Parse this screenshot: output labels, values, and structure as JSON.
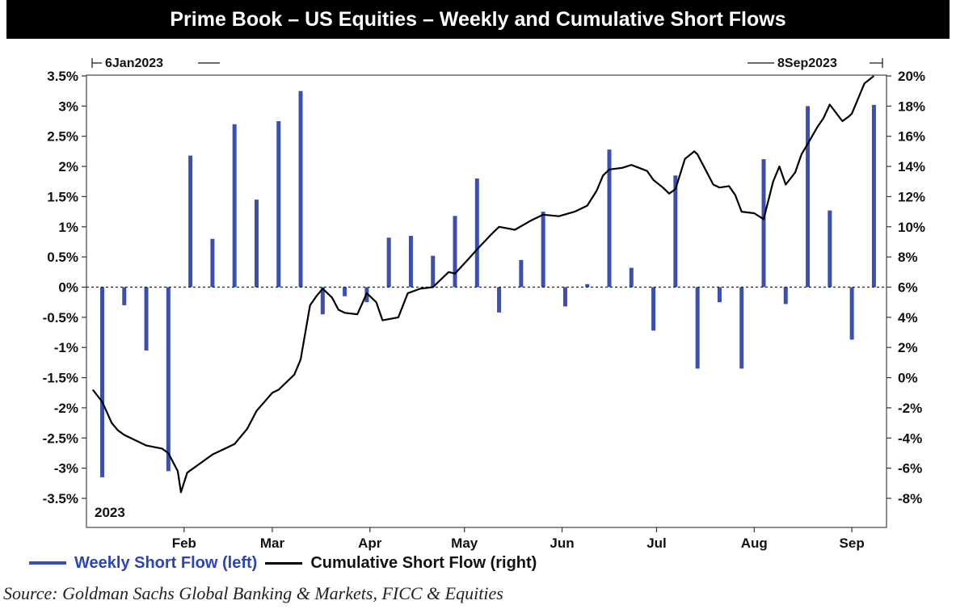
{
  "title": "Prime Book – US Equities – Weekly and Cumulative Short Flows",
  "source": "Source: Goldman Sachs Global Banking & Markets, FICC & Equities",
  "colors": {
    "bar": "#3a4fb0",
    "line": "#000000",
    "legend_bar_text": "#2b45b5"
  },
  "chart_data": {
    "type": "bar+line",
    "year_label": "2023",
    "start_label": "6Jan2023",
    "end_label": "8Sep2023",
    "x_labels": [
      "Feb",
      "Mar",
      "Apr",
      "May",
      "Jun",
      "Jul",
      "Aug",
      "Sep"
    ],
    "left_axis": {
      "ylim": [
        -3.5,
        3.5
      ],
      "ticks": [
        3.5,
        3,
        2.5,
        2,
        1.5,
        1,
        0.5,
        0,
        -0.5,
        -1,
        -1.5,
        -2,
        -2.5,
        -3,
        -3.5
      ],
      "tick_labels": [
        "3.5%",
        "3%",
        "2.5%",
        "2%",
        "1.5%",
        "1%",
        "0.5%",
        "0%",
        "-0.5%",
        "-1%",
        "-1.5%",
        "-2%",
        "-2.5%",
        "-3%",
        "-3.5%"
      ]
    },
    "right_axis": {
      "ylim": [
        -8,
        20
      ],
      "ticks": [
        20,
        18,
        16,
        14,
        12,
        10,
        8,
        6,
        4,
        2,
        0,
        -2,
        -4,
        -6,
        -8
      ],
      "tick_labels": [
        "20%",
        "18%",
        "16%",
        "14%",
        "12%",
        "10%",
        "8%",
        "6%",
        "4%",
        "2%",
        "0%",
        "-2%",
        "-4%",
        "-6%",
        "-8%"
      ]
    },
    "legend": [
      {
        "name": "Weekly Short Flow (left)",
        "kind": "bar"
      },
      {
        "name": "Cumulative Short Flow (right)",
        "kind": "line"
      }
    ],
    "series": [
      {
        "name": "Weekly Short Flow (left)",
        "kind": "bar",
        "axis": "left",
        "points": [
          [
            "2023-01-06",
            -3.15
          ],
          [
            "2023-01-13",
            -0.3
          ],
          [
            "2023-01-20",
            -1.05
          ],
          [
            "2023-01-27",
            -3.05
          ],
          [
            "2023-02-03",
            2.18
          ],
          [
            "2023-02-10",
            0.8
          ],
          [
            "2023-02-17",
            2.7
          ],
          [
            "2023-02-24",
            1.45
          ],
          [
            "2023-03-03",
            2.75
          ],
          [
            "2023-03-10",
            3.25
          ],
          [
            "2023-03-17",
            -0.45
          ],
          [
            "2023-03-24",
            -0.15
          ],
          [
            "2023-03-31",
            -0.25
          ],
          [
            "2023-04-07",
            0.82
          ],
          [
            "2023-04-14",
            0.85
          ],
          [
            "2023-04-21",
            0.52
          ],
          [
            "2023-04-28",
            1.18
          ],
          [
            "2023-05-05",
            1.8
          ],
          [
            "2023-05-12",
            -0.42
          ],
          [
            "2023-05-19",
            0.45
          ],
          [
            "2023-05-26",
            1.25
          ],
          [
            "2023-06-02",
            -0.32
          ],
          [
            "2023-06-09",
            0.05
          ],
          [
            "2023-06-16",
            2.28
          ],
          [
            "2023-06-23",
            0.32
          ],
          [
            "2023-06-30",
            -0.72
          ],
          [
            "2023-07-07",
            1.85
          ],
          [
            "2023-07-14",
            -1.35
          ],
          [
            "2023-07-21",
            -0.25
          ],
          [
            "2023-07-28",
            -1.35
          ],
          [
            "2023-08-04",
            2.12
          ],
          [
            "2023-08-11",
            -0.28
          ],
          [
            "2023-08-18",
            3.0
          ],
          [
            "2023-08-25",
            1.27
          ],
          [
            "2023-09-01",
            -0.87
          ],
          [
            "2023-09-08",
            3.02
          ]
        ]
      },
      {
        "name": "Cumulative Short Flow (right)",
        "kind": "line",
        "axis": "right",
        "points": [
          [
            "2023-01-03",
            -0.8
          ],
          [
            "2023-01-06",
            -1.6
          ],
          [
            "2023-01-09",
            -3.0
          ],
          [
            "2023-01-11",
            -3.5
          ],
          [
            "2023-01-13",
            -3.8
          ],
          [
            "2023-01-17",
            -4.2
          ],
          [
            "2023-01-20",
            -4.5
          ],
          [
            "2023-01-25",
            -4.7
          ],
          [
            "2023-01-27",
            -5.0
          ],
          [
            "2023-01-30",
            -6.2
          ],
          [
            "2023-01-31",
            -7.6
          ],
          [
            "2023-02-02",
            -6.3
          ],
          [
            "2023-02-06",
            -5.7
          ],
          [
            "2023-02-10",
            -5.1
          ],
          [
            "2023-02-14",
            -4.7
          ],
          [
            "2023-02-17",
            -4.4
          ],
          [
            "2023-02-21",
            -3.4
          ],
          [
            "2023-02-24",
            -2.2
          ],
          [
            "2023-03-01",
            -1.0
          ],
          [
            "2023-03-03",
            -0.8
          ],
          [
            "2023-03-08",
            0.2
          ],
          [
            "2023-03-10",
            1.2
          ],
          [
            "2023-03-13",
            4.8
          ],
          [
            "2023-03-15",
            5.4
          ],
          [
            "2023-03-17",
            5.9
          ],
          [
            "2023-03-20",
            5.3
          ],
          [
            "2023-03-22",
            4.5
          ],
          [
            "2023-03-24",
            4.3
          ],
          [
            "2023-03-28",
            4.2
          ],
          [
            "2023-03-31",
            5.6
          ],
          [
            "2023-04-03",
            5.0
          ],
          [
            "2023-04-05",
            3.8
          ],
          [
            "2023-04-10",
            4.0
          ],
          [
            "2023-04-13",
            5.6
          ],
          [
            "2023-04-17",
            5.9
          ],
          [
            "2023-04-21",
            6.0
          ],
          [
            "2023-04-26",
            7.0
          ],
          [
            "2023-04-28",
            6.9
          ],
          [
            "2023-05-02",
            7.8
          ],
          [
            "2023-05-05",
            8.5
          ],
          [
            "2023-05-10",
            9.6
          ],
          [
            "2023-05-12",
            10.0
          ],
          [
            "2023-05-17",
            9.8
          ],
          [
            "2023-05-22",
            10.4
          ],
          [
            "2023-05-26",
            10.8
          ],
          [
            "2023-05-31",
            10.7
          ],
          [
            "2023-06-05",
            11.0
          ],
          [
            "2023-06-09",
            11.4
          ],
          [
            "2023-06-12",
            12.4
          ],
          [
            "2023-06-14",
            13.4
          ],
          [
            "2023-06-16",
            13.8
          ],
          [
            "2023-06-20",
            13.9
          ],
          [
            "2023-06-23",
            14.1
          ],
          [
            "2023-06-28",
            13.7
          ],
          [
            "2023-06-30",
            13.1
          ],
          [
            "2023-07-03",
            12.6
          ],
          [
            "2023-07-05",
            12.2
          ],
          [
            "2023-07-07",
            12.5
          ],
          [
            "2023-07-10",
            14.5
          ],
          [
            "2023-07-13",
            15.0
          ],
          [
            "2023-07-14",
            14.8
          ],
          [
            "2023-07-17",
            13.6
          ],
          [
            "2023-07-19",
            12.8
          ],
          [
            "2023-07-21",
            12.6
          ],
          [
            "2023-07-24",
            12.7
          ],
          [
            "2023-07-26",
            12.1
          ],
          [
            "2023-07-28",
            11.0
          ],
          [
            "2023-08-01",
            10.9
          ],
          [
            "2023-08-04",
            10.5
          ],
          [
            "2023-08-07",
            13.0
          ],
          [
            "2023-08-09",
            14.0
          ],
          [
            "2023-08-11",
            12.8
          ],
          [
            "2023-08-14",
            13.6
          ],
          [
            "2023-08-16",
            14.8
          ],
          [
            "2023-08-18",
            15.5
          ],
          [
            "2023-08-21",
            16.6
          ],
          [
            "2023-08-23",
            17.2
          ],
          [
            "2023-08-25",
            18.1
          ],
          [
            "2023-08-29",
            17.0
          ],
          [
            "2023-08-31",
            17.3
          ],
          [
            "2023-09-01",
            17.5
          ],
          [
            "2023-09-05",
            19.5
          ],
          [
            "2023-09-08",
            20.0
          ]
        ]
      }
    ]
  }
}
